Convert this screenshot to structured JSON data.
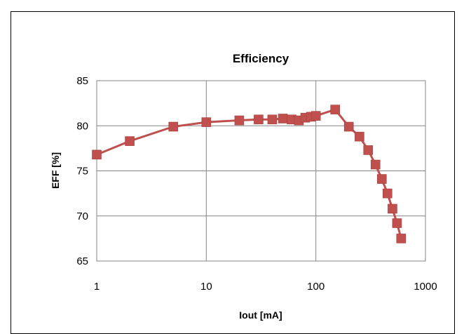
{
  "chart_data": {
    "type": "line",
    "title": "Efficiency",
    "xlabel": "Iout  [mA]",
    "ylabel": "EFF  [%]",
    "x_scale": "log",
    "xlim": [
      1,
      1000
    ],
    "ylim": [
      65,
      85
    ],
    "x_ticks": [
      1,
      10,
      100,
      1000
    ],
    "x_tick_labels": [
      "1",
      "10",
      "100",
      "1000"
    ],
    "y_ticks": [
      65,
      70,
      75,
      80,
      85
    ],
    "y_tick_labels": [
      "65",
      "70",
      "75",
      "80",
      "85"
    ],
    "grid": true,
    "legend": "none",
    "series": [
      {
        "color": "#C0504D",
        "marker": "square",
        "x": [
          1,
          2,
          5,
          10,
          20,
          30,
          40,
          50,
          60,
          70,
          80,
          90,
          100,
          150,
          200,
          250,
          300,
          350,
          400,
          450,
          500,
          550,
          600
        ],
        "y": [
          76.8,
          78.3,
          79.9,
          80.4,
          80.6,
          80.7,
          80.7,
          80.8,
          80.7,
          80.6,
          80.9,
          81.0,
          81.1,
          81.8,
          79.9,
          78.8,
          77.3,
          75.7,
          74.1,
          72.5,
          70.8,
          69.2,
          67.5
        ]
      }
    ]
  }
}
